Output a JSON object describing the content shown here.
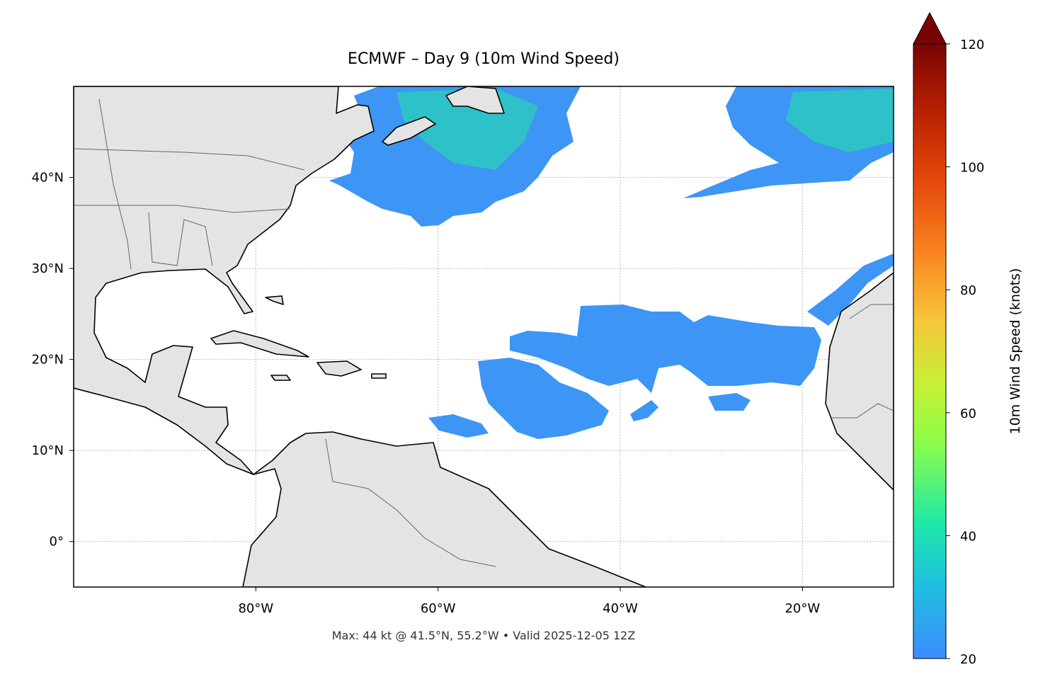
{
  "title": "ECMWF – Day 9 (10m Wind Speed)",
  "footer": "Max: 44 kt @ 41.5°N, 55.2°W • Valid 2025-12-05 12Z",
  "map": {
    "lonlim": [
      -100,
      -10
    ],
    "latlim": [
      -5,
      50
    ],
    "lon_ticks": [
      {
        "value": -80,
        "label": "80°W"
      },
      {
        "value": -60,
        "label": "60°W"
      },
      {
        "value": -40,
        "label": "40°W"
      },
      {
        "value": -20,
        "label": "20°W"
      }
    ],
    "lat_ticks": [
      {
        "value": 0,
        "label": "0°"
      },
      {
        "value": 10,
        "label": "10°N"
      },
      {
        "value": 20,
        "label": "20°N"
      },
      {
        "value": 30,
        "label": "30°N"
      },
      {
        "value": 40,
        "label": "40°N"
      }
    ],
    "grid": true
  },
  "colorbar": {
    "label": "10m Wind Speed (knots)",
    "lim": [
      20,
      120
    ],
    "ticks": [
      20,
      40,
      60,
      80,
      100,
      120
    ],
    "extend": "max"
  }
}
